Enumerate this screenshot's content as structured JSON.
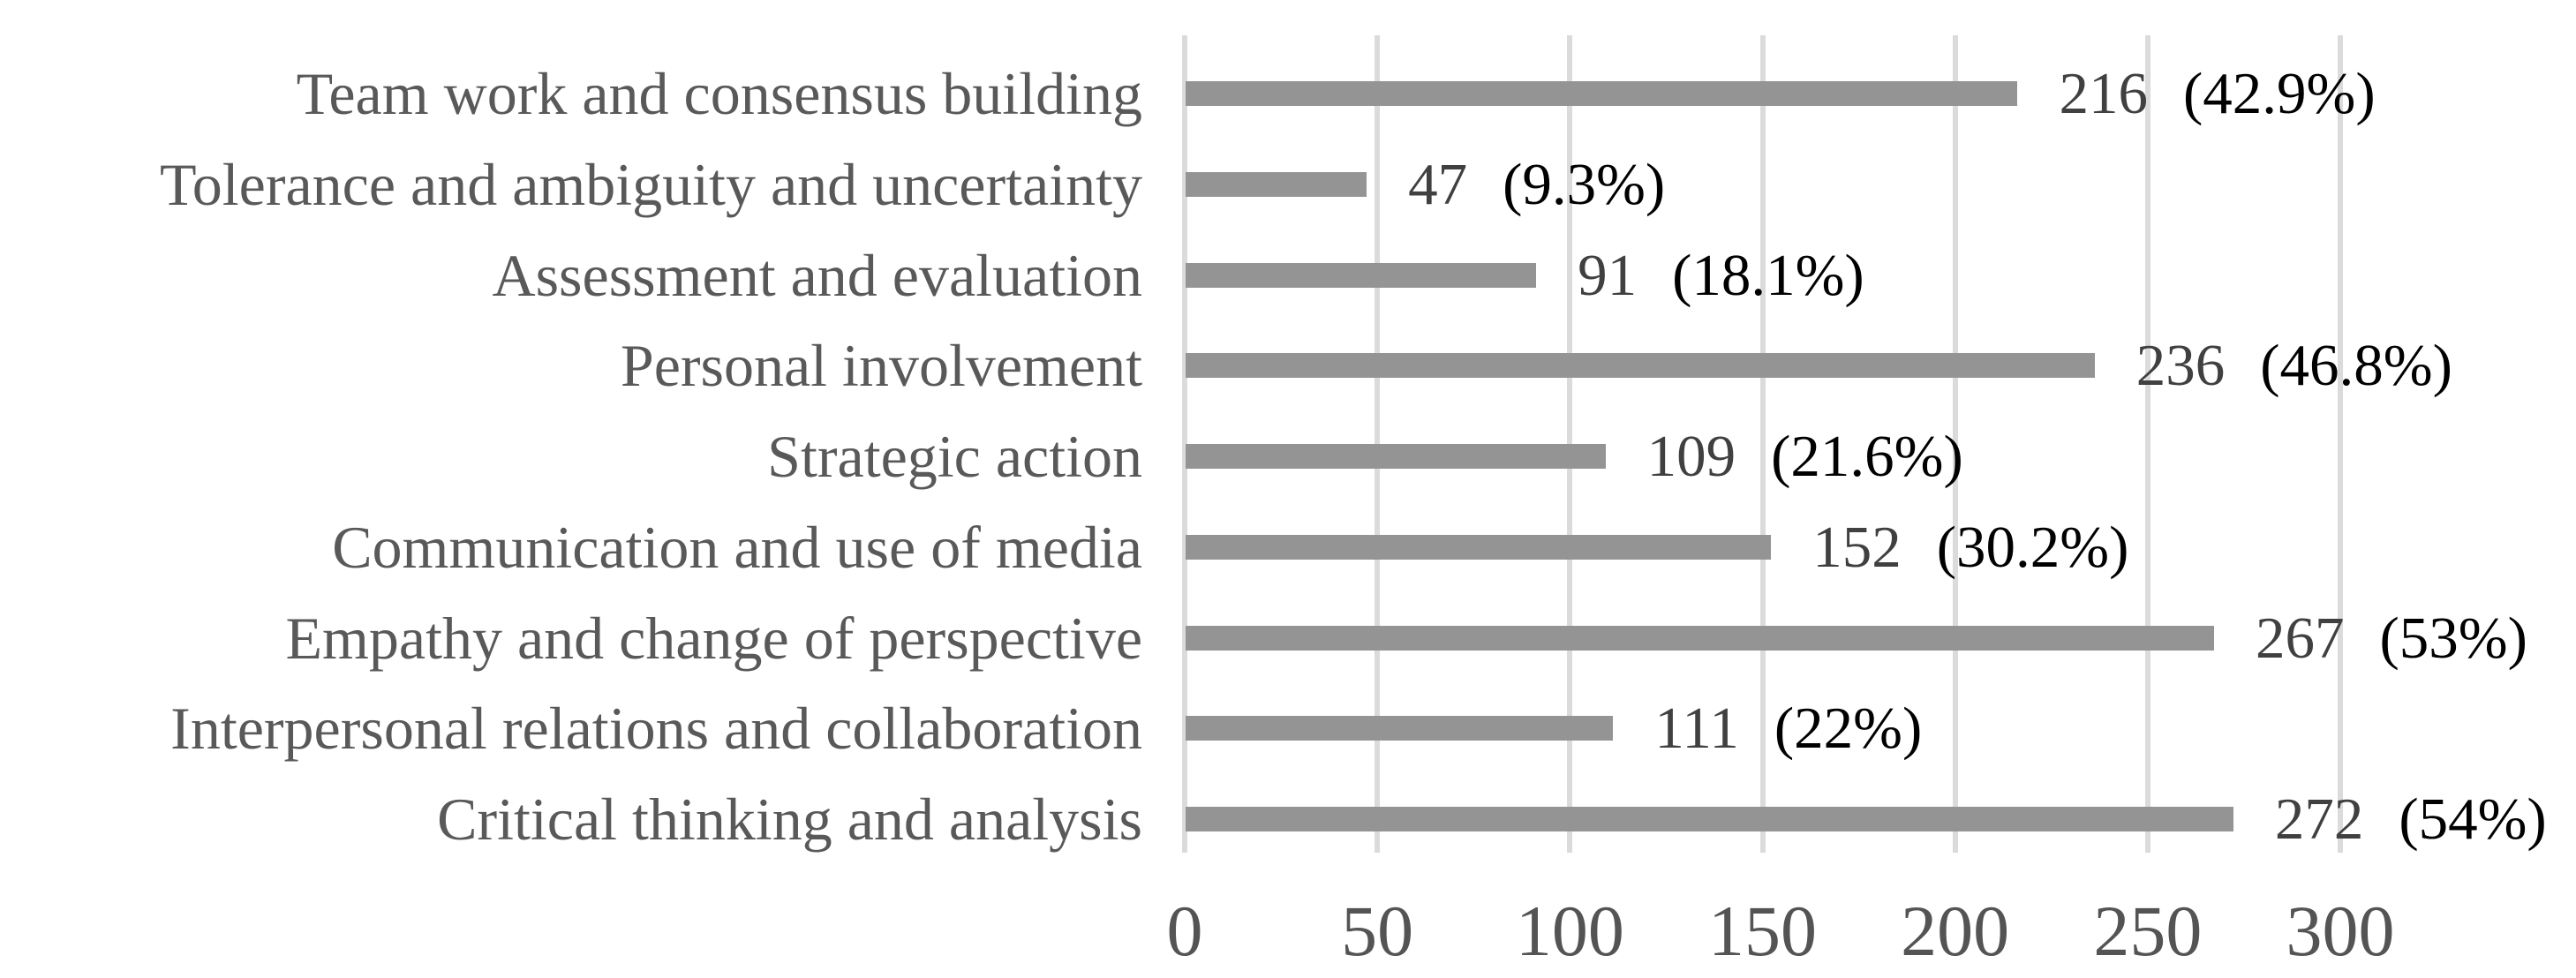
{
  "chart_data": {
    "type": "bar",
    "orientation": "horizontal",
    "title": "",
    "xlabel": "",
    "ylabel": "",
    "categories": [
      "Team work and consensus building",
      "Tolerance and ambiguity and uncertainty",
      "Assessment and evaluation",
      "Personal involvement",
      "Strategic action",
      "Communication and use of media",
      "Empathy and change of perspective",
      "Interpersonal relations and collaboration",
      "Critical thinking and analysis"
    ],
    "values": [
      216,
      47,
      91,
      236,
      109,
      152,
      267,
      111,
      272
    ],
    "percent_labels": [
      "(42.9%)",
      "(9.3%)",
      "(18.1%)",
      "(46.8%)",
      "(21.6%)",
      "(30.2%)",
      "(53%)",
      "(22%)",
      "(54%)"
    ],
    "x_ticks": [
      0,
      50,
      100,
      150,
      200,
      250,
      300
    ],
    "xlim": [
      0,
      300
    ],
    "grid": true,
    "legend": false,
    "colors": {
      "bar": "#949494",
      "gridline": "#DBDBDB",
      "category_label": "#595959",
      "value_label": "#404040",
      "percent_label": "#000000",
      "tick_label": "#545454",
      "background": "#ffffff"
    }
  }
}
